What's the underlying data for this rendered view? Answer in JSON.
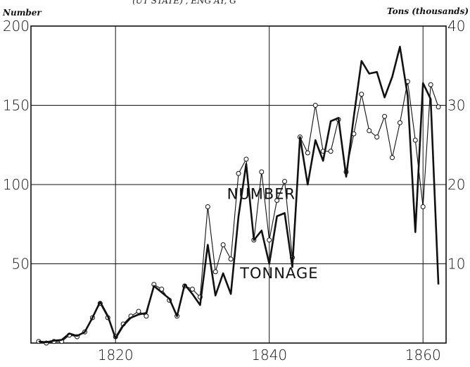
{
  "header_fragment": "(UT STATE) , ENG AY, G",
  "chart_data": {
    "type": "line",
    "title": "",
    "y_left_label": "Number",
    "y_right_label": "Tons (thousands)",
    "xlim": [
      1809,
      1863
    ],
    "ylim_left": [
      0,
      200
    ],
    "ylim_right": [
      0,
      40
    ],
    "x_ticks": [
      {
        "v": 1820,
        "label": "1820"
      },
      {
        "v": 1840,
        "label": "1840"
      },
      {
        "v": 1860,
        "label": "1860"
      }
    ],
    "y_left_ticks": [
      {
        "v": 50,
        "label": "50"
      },
      {
        "v": 100,
        "label": "100"
      },
      {
        "v": 150,
        "label": "150"
      },
      {
        "v": 200,
        "label": "200"
      }
    ],
    "y_right_ticks": [
      {
        "v": 10,
        "label": "10"
      },
      {
        "v": 20,
        "label": "20"
      },
      {
        "v": 30,
        "label": "30"
      },
      {
        "v": 40,
        "label": "40"
      }
    ],
    "grid": true,
    "annotations": [
      {
        "text": "NUMBER",
        "x": 1834.5,
        "y": 91
      },
      {
        "text": "TONNAGE",
        "x": 1836.2,
        "y": 41
      }
    ],
    "series": [
      {
        "name": "Number",
        "axis": "left",
        "marker": "circle",
        "x": [
          1810,
          1811,
          1812,
          1813,
          1814,
          1815,
          1816,
          1817,
          1818,
          1819,
          1820,
          1821,
          1822,
          1823,
          1824,
          1825,
          1826,
          1827,
          1828,
          1829,
          1830,
          1831,
          1832,
          1833,
          1834,
          1835,
          1836,
          1837,
          1838,
          1839,
          1840,
          1841,
          1842,
          1843,
          1844,
          1845,
          1846,
          1847,
          1848,
          1849,
          1850,
          1851,
          1852,
          1853,
          1854,
          1855,
          1856,
          1857,
          1858,
          1859,
          1860,
          1861,
          1862
        ],
        "y": [
          1,
          0,
          1,
          1,
          5,
          4,
          7,
          16,
          25,
          16,
          4,
          12,
          17,
          20,
          17,
          37,
          34,
          27,
          17,
          36,
          34,
          29,
          86,
          45,
          62,
          53,
          107,
          116,
          65,
          108,
          65,
          90,
          102,
          54,
          130,
          120,
          150,
          121,
          121,
          141,
          108,
          132,
          157,
          134,
          130,
          143,
          117,
          139,
          165,
          128,
          86,
          163,
          149
        ]
      },
      {
        "name": "Tonnage",
        "axis": "right",
        "marker": "none",
        "x": [
          1810,
          1811,
          1812,
          1813,
          1814,
          1815,
          1816,
          1817,
          1818,
          1819,
          1820,
          1821,
          1822,
          1823,
          1824,
          1825,
          1826,
          1827,
          1828,
          1829,
          1830,
          1831,
          1832,
          1833,
          1834,
          1835,
          1836,
          1837,
          1838,
          1839,
          1840,
          1841,
          1842,
          1843,
          1844,
          1845,
          1846,
          1847,
          1848,
          1849,
          1850,
          1851,
          1852,
          1853,
          1854,
          1855,
          1856,
          1857,
          1858,
          1859,
          1860,
          1861,
          1862
        ],
        "y": [
          0.2,
          0.1,
          0.3,
          0.4,
          1.2,
          0.9,
          1.4,
          3.2,
          5.2,
          3.4,
          0.6,
          2.2,
          3.2,
          3.6,
          3.8,
          7.2,
          6.4,
          5.6,
          3.4,
          7.4,
          6.2,
          4.8,
          12.4,
          6,
          8.8,
          6.2,
          16,
          22.6,
          13,
          14.2,
          10,
          16,
          16.4,
          9.6,
          26,
          20,
          25.6,
          23,
          28,
          28.4,
          21,
          28.6,
          35.6,
          34,
          34.2,
          31,
          33.6,
          37.4,
          31.2,
          14,
          32.8,
          30.8,
          7.4
        ]
      }
    ]
  }
}
